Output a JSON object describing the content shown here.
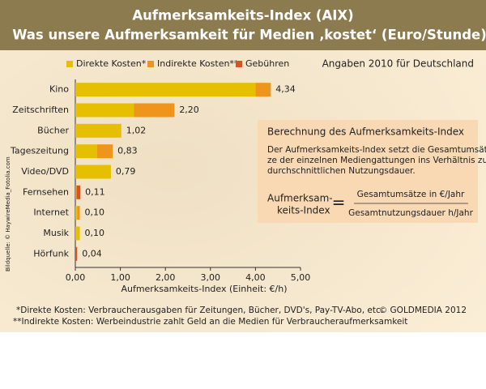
{
  "chart_data": {
    "type": "stacked-barh",
    "title": [
      "Aufmerksamkeits-Index (AIX)",
      "Was unsere Aufmerksamkeit für Medien ‚kostet‘ (Euro/Stunde)"
    ],
    "subtitle": "Angaben 2010 für Deutschland",
    "xlabel": "Aufmerksamkeits-Index (Einheit: €/h)",
    "categories": [
      "Kino",
      "Zeitschriften",
      "Bücher",
      "Tageszeitung",
      "Video/DVD",
      "Fernsehen",
      "Internet",
      "Musik",
      "Hörfunk"
    ],
    "series": [
      {
        "name": "Direkte Kosten*",
        "color": "#e6c000",
        "values": [
          4.0,
          1.3,
          1.02,
          0.48,
          0.79,
          0,
          0.04,
          0.1,
          0
        ]
      },
      {
        "name": "Indirekte Kosten**",
        "color": "#f0951c",
        "values": [
          0.34,
          0.9,
          0,
          0.35,
          0,
          0.03,
          0.06,
          0,
          0
        ]
      },
      {
        "name": "Gebühren",
        "color": "#d9531e",
        "values": [
          0,
          0,
          0,
          0,
          0,
          0.08,
          0,
          0,
          0.04
        ]
      }
    ],
    "totals": [
      4.34,
      2.2,
      1.02,
      0.83,
      0.79,
      0.11,
      0.1,
      0.1,
      0.04
    ],
    "total_labels": [
      "4,34",
      "2,20",
      "1,02",
      "0,83",
      "0,79",
      "0,11",
      "0,10",
      "0,10",
      "0,04"
    ],
    "xlim": [
      0,
      5
    ],
    "xticks": [
      {
        "value": 0,
        "label": "0,00"
      },
      {
        "value": 1,
        "label": "1,00"
      },
      {
        "value": 2,
        "label": "2,00"
      },
      {
        "value": 3,
        "label": "3,00"
      },
      {
        "value": 4,
        "label": "4,00"
      },
      {
        "value": 5,
        "label": "5,00"
      }
    ],
    "legend": "top"
  },
  "info_box": {
    "title": "Berechnung des Aufmerksamkeits-Index",
    "text": [
      "Der Aufmerksamkeits-Index setzt die Gesamtumsät-",
      "ze der einzelnen Mediengattungen ins Verhältnis zur",
      "durchschnittlichen Nutzungsdauer."
    ],
    "formula": {
      "left": [
        "Aufmerksam-",
        "keits-Index"
      ],
      "equals": "=",
      "numerator": "Gesamtumsätze in €/Jahr",
      "denominator": "Gesamtnutzungsdauer h/Jahr"
    }
  },
  "image_source": "Bildquelle: © HaywireMedia_Fotolia.com",
  "footnotes": [
    "*Direkte Kosten: Verbraucherausgaben für Zeitungen, Bücher, DVD's, Pay-TV-Abo, etc.",
    "**Indirekte Kosten: Werbeindustrie zahlt Geld an die Medien für Verbraucheraufmerksamkeit"
  ],
  "copyright": "© GOLDMEDIA 2012"
}
